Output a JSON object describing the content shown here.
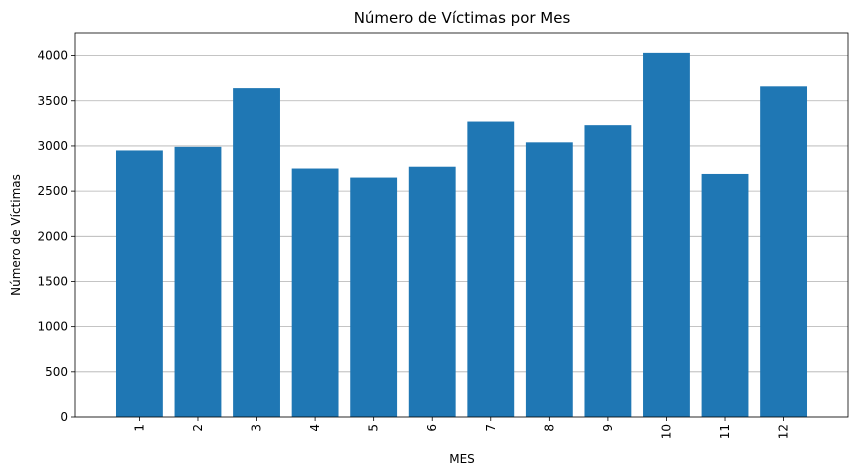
{
  "chart_data": {
    "type": "bar",
    "title": "Número de Víctimas por Mes",
    "xlabel": "MES",
    "ylabel": "Número de Víctimas",
    "categories": [
      "1",
      "2",
      "3",
      "4",
      "5",
      "6",
      "7",
      "8",
      "9",
      "10",
      "11",
      "12"
    ],
    "values": [
      2950,
      2990,
      3640,
      2750,
      2650,
      2770,
      3270,
      3040,
      3230,
      4030,
      2690,
      3660
    ],
    "ylim": [
      0,
      4250
    ],
    "yticks": [
      0,
      500,
      1000,
      1500,
      2000,
      2500,
      3000,
      3500,
      4000
    ],
    "ytick_labels": [
      "0",
      "500",
      "1000",
      "1500",
      "2000",
      "2500",
      "3000",
      "3500",
      "4000"
    ],
    "grid": "y-axis only",
    "bar_color": "#1f77b4",
    "xtick_rotation": "vertical"
  }
}
